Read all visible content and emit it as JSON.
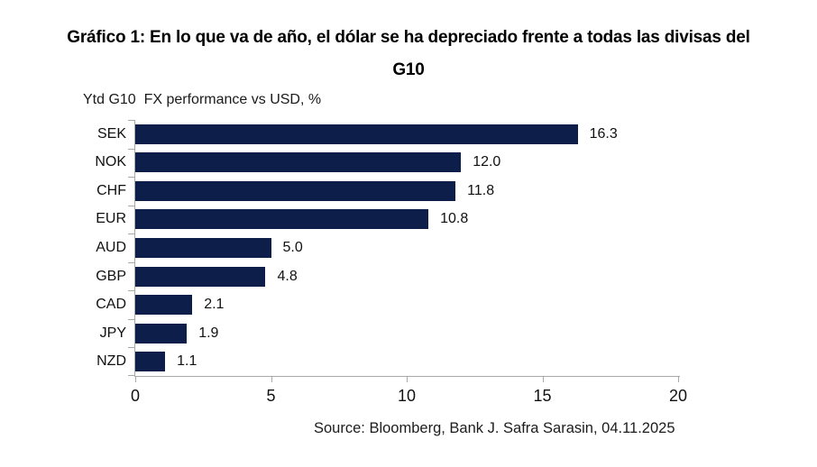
{
  "figure": {
    "title_line1": "Gráfico 1: En lo que va de año, el dólar se ha depreciado frente a todas las divisas del",
    "title_line2": "G10",
    "source": "Source: Bloomberg, Bank J. Safra Sarasin, 04.11.2025"
  },
  "chart_data": {
    "type": "bar",
    "orientation": "horizontal",
    "title": "Ytd G10  FX performance vs USD, %",
    "categories": [
      "SEK",
      "NOK",
      "CHF",
      "EUR",
      "AUD",
      "GBP",
      "CAD",
      "JPY",
      "NZD"
    ],
    "values": [
      16.3,
      12.0,
      11.8,
      10.8,
      5.0,
      4.8,
      2.1,
      1.9,
      1.1
    ],
    "value_labels": [
      "16.3",
      "12.0",
      "11.8",
      "10.8",
      "5.0",
      "4.8",
      "2.1",
      "1.9",
      "1.1"
    ],
    "xlabel": "",
    "ylabel": "",
    "xlim": [
      0,
      20
    ],
    "x_ticks": [
      "0",
      "5",
      "10",
      "15",
      "20"
    ],
    "grid": false,
    "legend": "none",
    "bar_color": "#0d1e4b",
    "axis_color": "#a9a9a9",
    "text_color": "#111111"
  }
}
